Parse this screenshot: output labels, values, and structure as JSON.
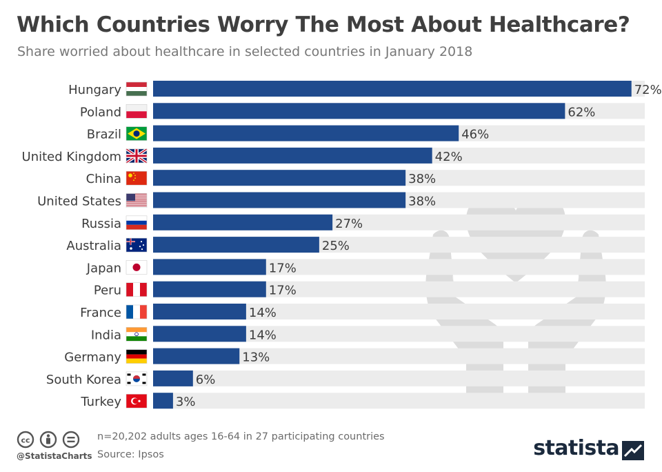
{
  "title": "Which Countries Worry The Most About Healthcare?",
  "subtitle": "Share worried about healthcare in selected countries in January 2018",
  "footer": {
    "note": "n=20,202 adults ages 16-64 in 27 participating countries",
    "source": "Source: Ipsos",
    "handle": "@StatistaCharts",
    "brand": "statista"
  },
  "icons": [
    "cc-icon",
    "person-icon",
    "equal-icon",
    "heart-hands-icon",
    "statista-logo-icon"
  ],
  "colors": {
    "bar": "#1f4b8e",
    "track": "#ececec",
    "label": "#3c3c3c",
    "watermark": "#d6d6d6"
  },
  "chart_data": {
    "type": "bar",
    "orientation": "horizontal",
    "title": "Which Countries Worry The Most About Healthcare?",
    "subtitle": "Share worried about healthcare in selected countries in January 2018",
    "unit": "%",
    "xlim": [
      0,
      100
    ],
    "grid": false,
    "legend": "none",
    "categories": [
      "Hungary",
      "Poland",
      "Brazil",
      "United Kingdom",
      "China",
      "United States",
      "Russia",
      "Australia",
      "Japan",
      "Peru",
      "France",
      "India",
      "Germany",
      "South Korea",
      "Turkey"
    ],
    "values": [
      72,
      62,
      46,
      42,
      38,
      38,
      27,
      25,
      17,
      17,
      14,
      14,
      13,
      6,
      3
    ],
    "value_labels": [
      "72%",
      "62%",
      "46%",
      "42%",
      "38%",
      "38%",
      "27%",
      "25%",
      "17%",
      "17%",
      "14%",
      "14%",
      "13%",
      "6%",
      "3%"
    ]
  }
}
